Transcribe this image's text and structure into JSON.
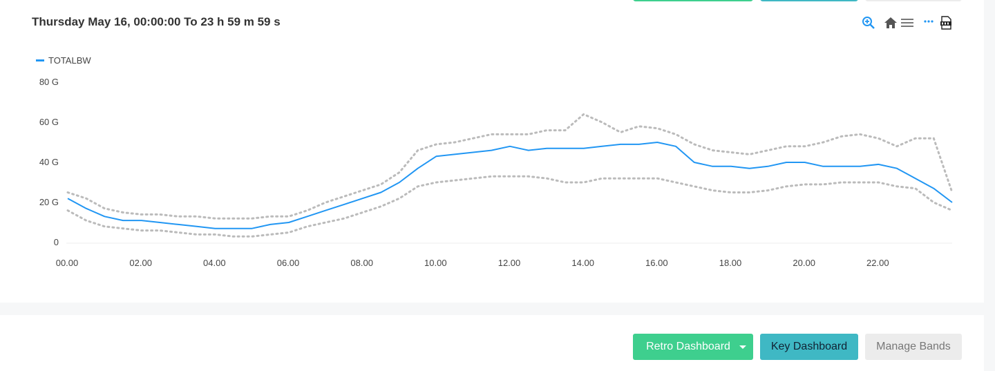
{
  "page": {
    "title": "Thursday May 16, 00:00:00 To 23 h 59 m 59 s"
  },
  "toolbar": {
    "icons": [
      "zoom-in-icon",
      "home-icon",
      "menu-icon",
      "more-icon",
      "pdf-icon"
    ],
    "accent": "#2196f3"
  },
  "buttons": {
    "retro": "Retro Dashboard",
    "key": "Key Dashboard",
    "bands": "Manage Bands",
    "retro_color": "#3ecf8e",
    "key_color": "#3fb8c4",
    "bands_color": "#ececec"
  },
  "chart_data": {
    "type": "line",
    "title": "",
    "xlabel": "",
    "ylabel": "",
    "x_ticks": [
      "00.00",
      "02.00",
      "04.00",
      "06.00",
      "08.00",
      "10.00",
      "12.00",
      "14.00",
      "16.00",
      "18.00",
      "20.00",
      "22.00"
    ],
    "y_ticks": [
      "0",
      "20 G",
      "40 G",
      "60 G",
      "80 G"
    ],
    "xlim": [
      0,
      24
    ],
    "ylim": [
      0,
      80
    ],
    "legend": "top-left",
    "grid": false,
    "series": [
      {
        "name": "TOTALBW",
        "color": "#2196f3",
        "x": [
          0,
          0.5,
          1,
          1.5,
          2,
          2.5,
          3,
          3.5,
          4,
          4.5,
          5,
          5.5,
          6,
          6.5,
          7,
          7.5,
          8,
          8.5,
          9,
          9.5,
          10,
          10.5,
          11,
          11.5,
          12,
          12.5,
          13,
          13.5,
          14,
          14.5,
          15,
          15.5,
          16,
          16.5,
          17,
          17.5,
          18,
          18.5,
          19,
          19.5,
          20,
          20.5,
          21,
          21.5,
          22,
          22.5,
          23,
          23.5,
          24
        ],
        "y": [
          22,
          17,
          13,
          11,
          11,
          10,
          9,
          8,
          7,
          7,
          7,
          9,
          10,
          13,
          16,
          19,
          22,
          25,
          30,
          37,
          43,
          44,
          45,
          46,
          48,
          46,
          47,
          47,
          47,
          48,
          49,
          49,
          50,
          48,
          40,
          38,
          38,
          37,
          38,
          40,
          40,
          38,
          38,
          38,
          39,
          37,
          32,
          27,
          20
        ]
      }
    ],
    "bands": {
      "upper": {
        "color": "#bbbbbb",
        "x": [
          0,
          0.5,
          1,
          1.5,
          2,
          2.5,
          3,
          3.5,
          4,
          4.5,
          5,
          5.5,
          6,
          6.5,
          7,
          7.5,
          8,
          8.5,
          9,
          9.5,
          10,
          10.5,
          11,
          11.5,
          12,
          12.5,
          13,
          13.5,
          14,
          14.5,
          15,
          15.5,
          16,
          16.5,
          17,
          17.5,
          18,
          18.5,
          19,
          19.5,
          20,
          20.5,
          21,
          21.5,
          22,
          22.5,
          23,
          23.5,
          24
        ],
        "y": [
          25,
          22,
          17,
          15,
          14,
          14,
          13,
          13,
          12,
          12,
          12,
          13,
          13,
          16,
          20,
          23,
          26,
          29,
          35,
          46,
          49,
          50,
          52,
          54,
          54,
          54,
          56,
          56,
          64,
          60,
          55,
          58,
          57,
          54,
          49,
          46,
          45,
          44,
          46,
          48,
          48,
          50,
          53,
          54,
          52,
          48,
          52,
          52,
          25
        ]
      },
      "lower": {
        "color": "#bbbbbb",
        "x": [
          0,
          0.5,
          1,
          1.5,
          2,
          2.5,
          3,
          3.5,
          4,
          4.5,
          5,
          5.5,
          6,
          6.5,
          7,
          7.5,
          8,
          8.5,
          9,
          9.5,
          10,
          10.5,
          11,
          11.5,
          12,
          12.5,
          13,
          13.5,
          14,
          14.5,
          15,
          15.5,
          16,
          16.5,
          17,
          17.5,
          18,
          18.5,
          19,
          19.5,
          20,
          20.5,
          21,
          21.5,
          22,
          22.5,
          23,
          23.5,
          24
        ],
        "y": [
          16,
          11,
          8,
          7,
          6,
          6,
          5,
          4,
          4,
          3,
          3,
          4,
          5,
          8,
          10,
          12,
          15,
          18,
          22,
          28,
          30,
          31,
          32,
          33,
          33,
          33,
          32,
          30,
          30,
          32,
          32,
          32,
          32,
          30,
          28,
          26,
          25,
          25,
          26,
          28,
          29,
          29,
          30,
          30,
          30,
          28,
          27,
          20,
          16
        ]
      }
    }
  }
}
